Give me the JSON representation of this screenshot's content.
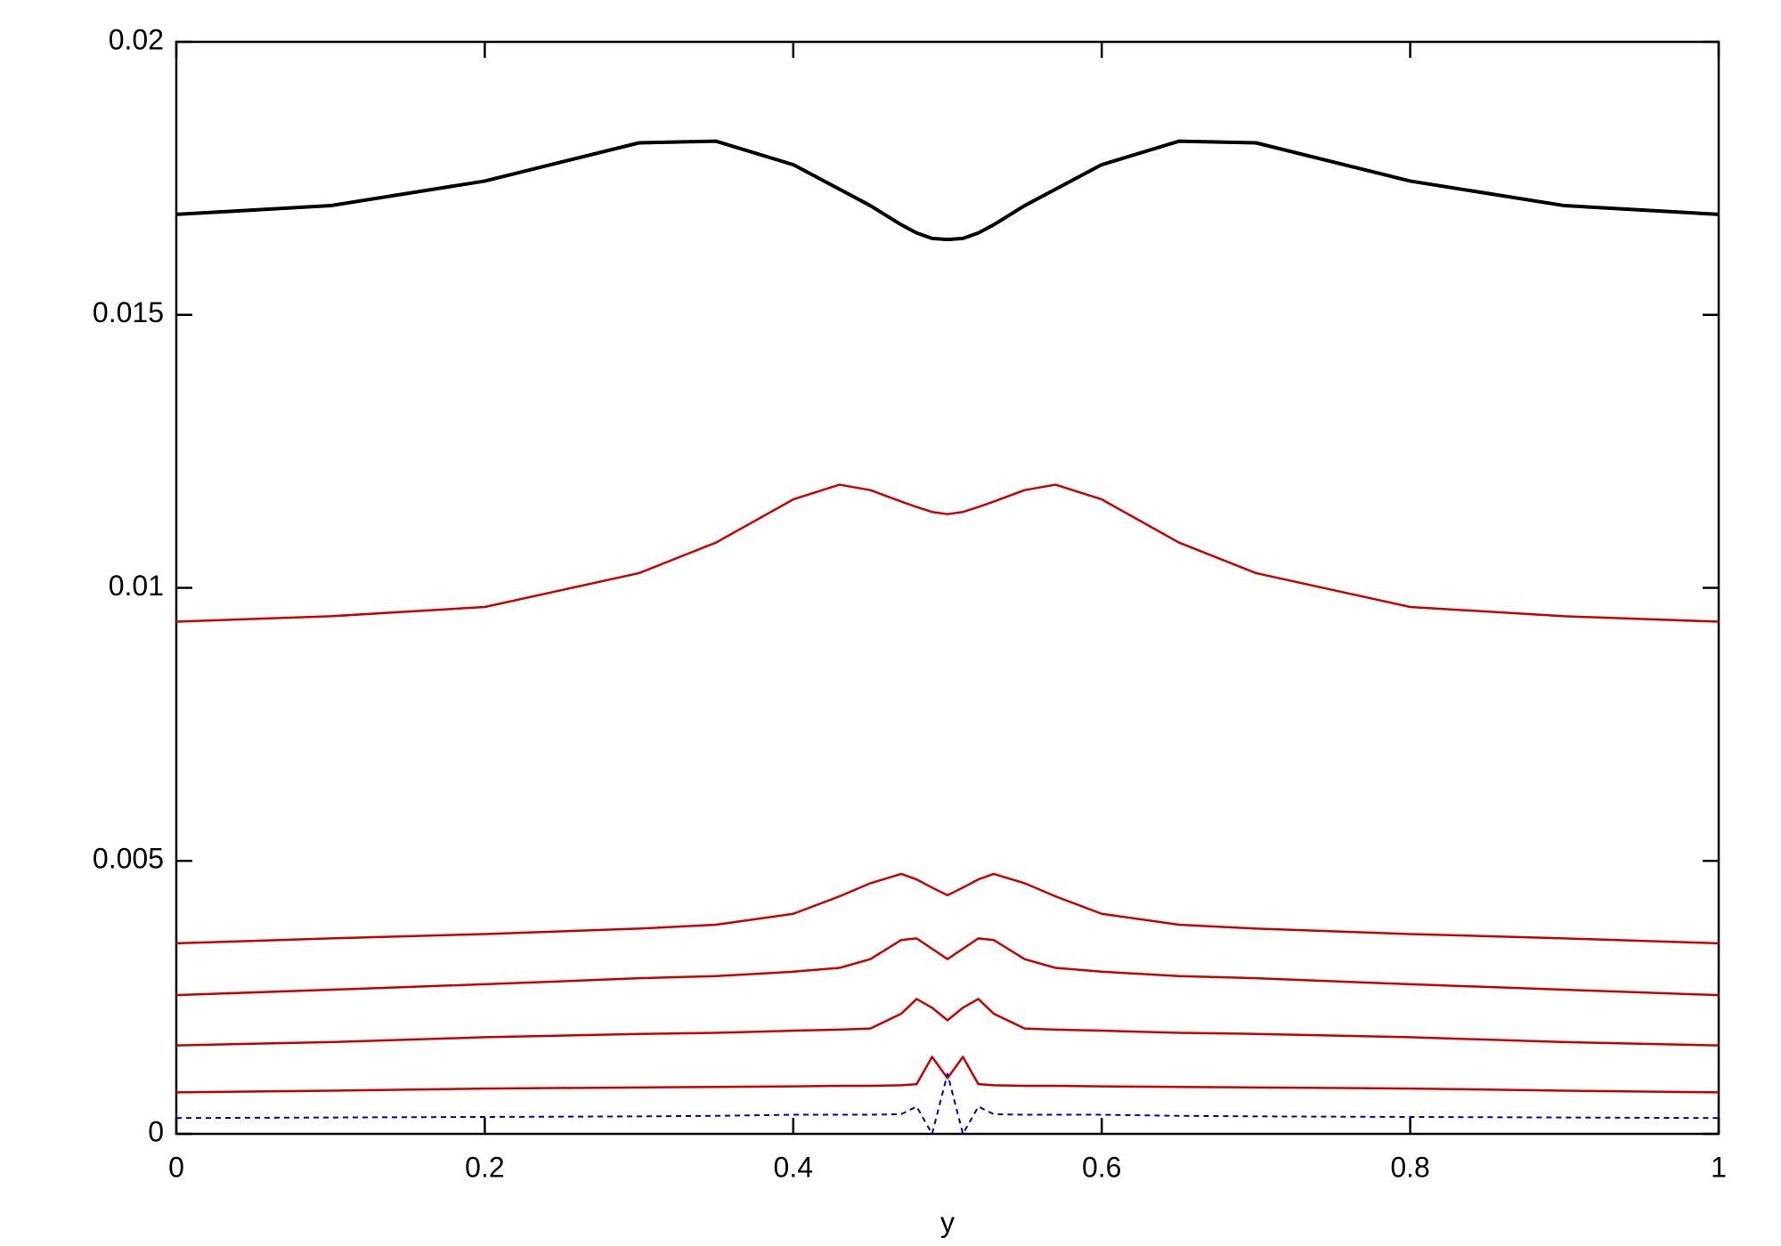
{
  "chart_data": {
    "type": "line",
    "x_label": "y",
    "x": [
      0,
      0.1,
      0.2,
      0.3,
      0.35,
      0.4,
      0.43,
      0.45,
      0.47,
      0.48,
      0.49,
      0.5,
      0.51,
      0.52,
      0.53,
      0.55,
      0.57,
      0.6,
      0.65,
      0.7,
      0.8,
      0.9,
      1
    ],
    "series": [
      {
        "color": "#000000",
        "line_width": 4,
        "values": [
          0.01684,
          0.017,
          0.01745,
          0.01815,
          0.01818,
          0.01775,
          0.0173,
          0.017,
          0.01665,
          0.0165,
          0.0164,
          0.01638,
          0.0164,
          0.0165,
          0.01665,
          0.017,
          0.0173,
          0.01775,
          0.01818,
          0.01815,
          0.01745,
          0.017,
          0.01684
        ]
      },
      {
        "color": "#cc0000",
        "line_width": 2.5,
        "values": [
          0.00938,
          0.00948,
          0.00965,
          0.01027,
          0.01083,
          0.01162,
          0.01189,
          0.01179,
          0.01158,
          0.01148,
          0.01139,
          0.01135,
          0.01139,
          0.01148,
          0.01158,
          0.01179,
          0.01189,
          0.01162,
          0.01083,
          0.01027,
          0.00965,
          0.00948,
          0.00938
        ]
      },
      {
        "color": "#cc0000",
        "line_width": 2.5,
        "values": [
          0.00349,
          0.00358,
          0.00366,
          0.00376,
          0.00383,
          0.00403,
          0.00435,
          0.00459,
          0.00476,
          0.00466,
          0.00451,
          0.00437,
          0.00451,
          0.00466,
          0.00476,
          0.00459,
          0.00435,
          0.00403,
          0.00383,
          0.00376,
          0.00366,
          0.00358,
          0.00349
        ]
      },
      {
        "color": "#cc0000",
        "line_width": 2.5,
        "values": [
          0.00254,
          0.00264,
          0.00274,
          0.00285,
          0.00289,
          0.00297,
          0.00304,
          0.0032,
          0.00355,
          0.00358,
          0.00339,
          0.0032,
          0.00339,
          0.00358,
          0.00355,
          0.0032,
          0.00304,
          0.00297,
          0.00289,
          0.00285,
          0.00274,
          0.00264,
          0.00254
        ]
      },
      {
        "color": "#cc0000",
        "line_width": 2.5,
        "values": [
          0.00162,
          0.00168,
          0.00177,
          0.00183,
          0.00185,
          0.00189,
          0.00191,
          0.00193,
          0.0022,
          0.00247,
          0.00231,
          0.00208,
          0.00231,
          0.00247,
          0.0022,
          0.00193,
          0.00191,
          0.00189,
          0.00185,
          0.00183,
          0.00177,
          0.00168,
          0.00162
        ]
      },
      {
        "color": "#cc0000",
        "line_width": 2.5,
        "values": [
          0.00076,
          0.00079,
          0.00083,
          0.00085,
          0.00086,
          0.00087,
          0.00088,
          0.00088,
          0.00089,
          0.00091,
          0.00141,
          0.00102,
          0.00141,
          0.00091,
          0.00089,
          0.00088,
          0.00088,
          0.00087,
          0.00086,
          0.00085,
          0.00083,
          0.00079,
          0.00076
        ]
      },
      {
        "color": "#0000cc",
        "line_width": 2,
        "dashed": true,
        "values": [
          0.00029,
          0.0003,
          0.00031,
          0.00032,
          0.00033,
          0.00035,
          0.00035,
          0.00035,
          0.00036,
          0.0005,
          0,
          0.0011,
          0,
          0.0005,
          0.00036,
          0.00035,
          0.00035,
          0.00035,
          0.00033,
          0.00032,
          0.00031,
          0.0003,
          0.00029
        ]
      }
    ],
    "xlim": [
      0,
      1
    ],
    "xticks": [
      0,
      0.2,
      0.4,
      0.6,
      0.8,
      1
    ],
    "ylim": [
      0,
      0.02
    ],
    "yticks": [
      0,
      0.005,
      0.01,
      0.015,
      0.02
    ],
    "grid": false
  }
}
